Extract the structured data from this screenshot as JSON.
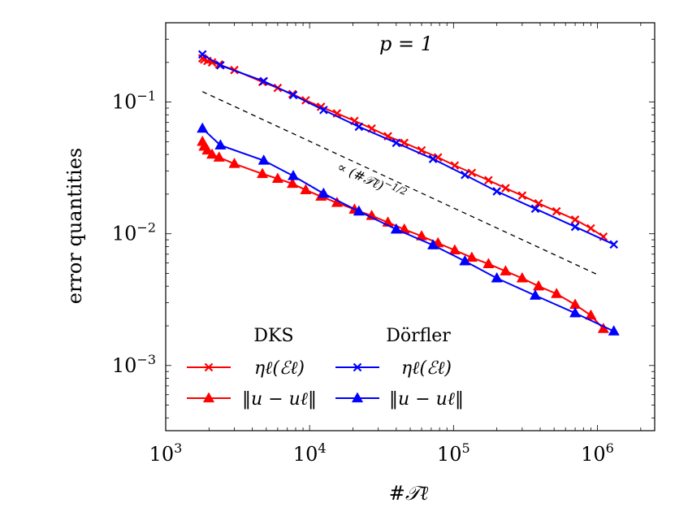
{
  "chart_data": {
    "type": "line",
    "title": "p = 1",
    "xlabel": "#𝒯ℓ",
    "ylabel": "error quantities",
    "xscale": "log",
    "yscale": "log",
    "xlim": [
      1000,
      2500000
    ],
    "ylim": [
      0.00032,
      0.4
    ],
    "xticks": [
      {
        "value": 1000,
        "base": "10",
        "exp": "3"
      },
      {
        "value": 10000,
        "base": "10",
        "exp": "4"
      },
      {
        "value": 100000,
        "base": "10",
        "exp": "5"
      },
      {
        "value": 1000000,
        "base": "10",
        "exp": "6"
      }
    ],
    "yticks": [
      {
        "value": 0.001,
        "base": "10",
        "exp": "−3"
      },
      {
        "value": 0.01,
        "base": "10",
        "exp": "−2"
      },
      {
        "value": 0.1,
        "base": "10",
        "exp": "−1"
      }
    ],
    "grid": false,
    "legend": {
      "placement": "bottom-left",
      "column_headers": [
        "DKS",
        "Dörfler"
      ],
      "entries": [
        "ηℓ(ℰℓ)",
        "‖u − uℓ‖",
        "ηℓ(ℰℓ)",
        "‖u − uℓ‖"
      ]
    },
    "reference_line": {
      "label": "∝ (#𝒯ℓ)^−1/2",
      "label_base": "∝ (#𝒯ℓ)",
      "label_exp": "−1/2",
      "x": [
        1800,
        1000000
      ],
      "y": [
        0.12,
        0.0049
      ],
      "style": "dashed",
      "color": "#000000"
    },
    "series": [
      {
        "name": "ηℓ(ℰℓ)",
        "group": "DKS",
        "color": "#ff0000",
        "marker": "x",
        "x": [
          1800,
          1850,
          1950,
          2100,
          2350,
          3000,
          4700,
          6000,
          7600,
          9400,
          12000,
          15500,
          20500,
          27000,
          35000,
          45500,
          60000,
          78000,
          102000,
          134000,
          175000,
          230000,
          300000,
          390000,
          520000,
          700000,
          900000,
          1100000
        ],
        "y": [
          0.215,
          0.21,
          0.205,
          0.2,
          0.193,
          0.175,
          0.142,
          0.128,
          0.115,
          0.103,
          0.092,
          0.082,
          0.072,
          0.063,
          0.055,
          0.049,
          0.043,
          0.038,
          0.033,
          0.029,
          0.0255,
          0.0222,
          0.0195,
          0.017,
          0.0148,
          0.0128,
          0.011,
          0.0095
        ]
      },
      {
        "name": "‖u − uℓ‖",
        "group": "DKS",
        "color": "#ff0000",
        "marker": "triangle",
        "x": [
          1800,
          1850,
          1950,
          2100,
          2350,
          3000,
          4700,
          6000,
          7600,
          9400,
          12000,
          15500,
          20500,
          27000,
          35000,
          45500,
          60000,
          78000,
          102000,
          134000,
          175000,
          230000,
          300000,
          390000,
          520000,
          700000,
          900000,
          1100000
        ],
        "y": [
          0.05,
          0.046,
          0.043,
          0.04,
          0.038,
          0.034,
          0.0285,
          0.0262,
          0.024,
          0.0215,
          0.0192,
          0.0172,
          0.0153,
          0.0137,
          0.0122,
          0.0108,
          0.0096,
          0.0085,
          0.0075,
          0.0066,
          0.0059,
          0.0052,
          0.0046,
          0.004,
          0.0035,
          0.0029,
          0.0024,
          0.0019
        ]
      },
      {
        "name": "ηℓ(ℰℓ)",
        "group": "Dörfler",
        "color": "#0000ff",
        "marker": "x",
        "x": [
          1800,
          2400,
          4800,
          7700,
          12500,
          22000,
          40000,
          72000,
          120000,
          200000,
          370000,
          700000,
          1300000
        ],
        "y": [
          0.23,
          0.19,
          0.144,
          0.113,
          0.087,
          0.065,
          0.049,
          0.037,
          0.028,
          0.021,
          0.0155,
          0.0113,
          0.0083
        ]
      },
      {
        "name": "‖u − uℓ‖",
        "group": "Dörfler",
        "color": "#0000ff",
        "marker": "triangle",
        "x": [
          1800,
          2400,
          4800,
          7700,
          12500,
          22000,
          40000,
          72000,
          120000,
          200000,
          370000,
          700000,
          1300000
        ],
        "y": [
          0.063,
          0.047,
          0.036,
          0.0275,
          0.0202,
          0.0148,
          0.0108,
          0.0082,
          0.0062,
          0.0046,
          0.0034,
          0.0025,
          0.00182
        ]
      }
    ]
  }
}
